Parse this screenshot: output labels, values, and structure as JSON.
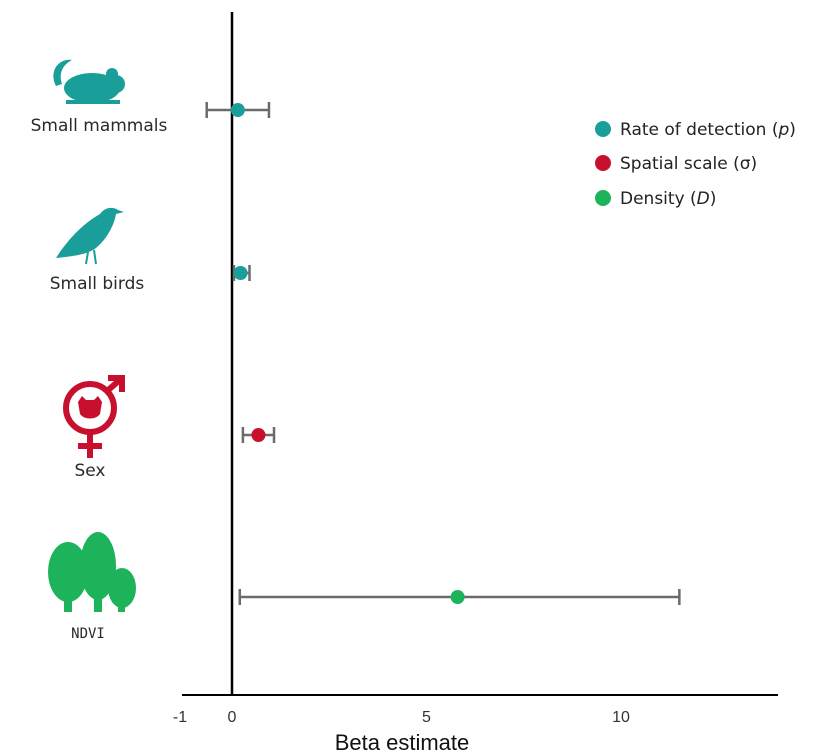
{
  "chart_data": {
    "type": "scatter",
    "subtype": "coefficient-plot-with-error-bars",
    "xlabel": "Beta estimate",
    "ylabel": "",
    "xlim": [
      -1,
      14
    ],
    "xticks": [
      -1,
      0,
      5,
      10
    ],
    "xtick_labels": [
      "-1",
      "0",
      "5",
      "10"
    ],
    "reference_line_x": 0,
    "grid": false,
    "legend_position": "top-right",
    "series": [
      {
        "name": "Rate of detection (p)",
        "name_parts": [
          "Rate of detection (",
          "p",
          ")"
        ],
        "color": "#1a9e9a"
      },
      {
        "name": "Spatial scale (σ)",
        "name_parts": [
          "Spatial scale (σ)"
        ],
        "color": "#c8102e"
      },
      {
        "name": "Density (D)",
        "name_parts": [
          "Density (",
          "D",
          ")"
        ],
        "color": "#1db35a"
      }
    ],
    "points": [
      {
        "label": "Small mammals",
        "series": 0,
        "estimate": 0.15,
        "lower": -0.65,
        "upper": 0.95,
        "icon": "mouse-icon"
      },
      {
        "label": "Small birds",
        "series": 0,
        "estimate": 0.22,
        "lower": 0.05,
        "upper": 0.45,
        "icon": "bird-icon"
      },
      {
        "label": "Sex",
        "series": 1,
        "estimate": 0.68,
        "lower": 0.28,
        "upper": 1.08,
        "icon": "sex-symbol-icon"
      },
      {
        "label": "NDVI",
        "series": 2,
        "estimate": 5.8,
        "lower": 0.2,
        "upper": 11.5,
        "icon": "trees-icon"
      }
    ]
  }
}
